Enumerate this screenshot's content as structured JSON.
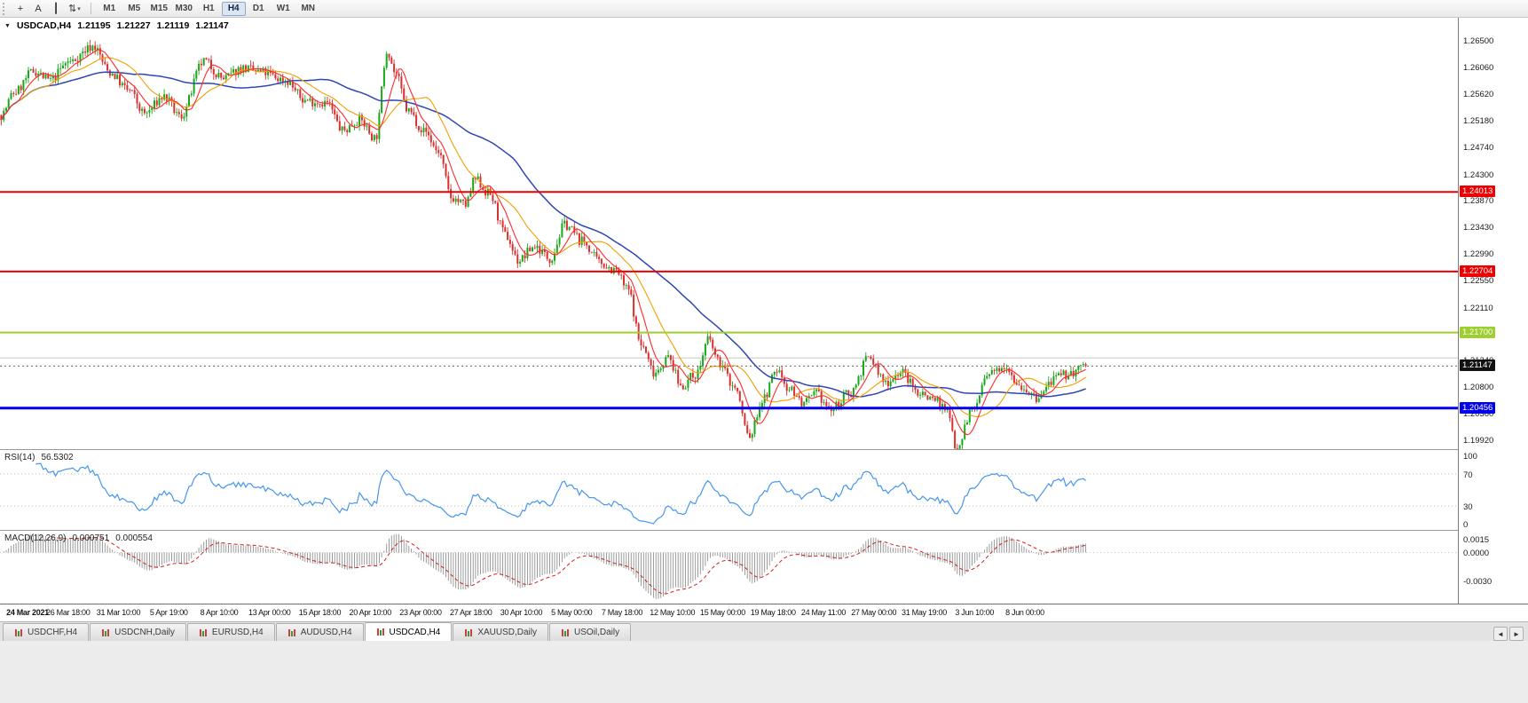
{
  "toolbar": {
    "icons": [
      {
        "name": "crosshair-tool-icon",
        "glyph": "+"
      },
      {
        "name": "text-label-tool-icon",
        "glyph": "A"
      },
      {
        "name": "vertical-line-tool-icon",
        "glyph": "┃"
      },
      {
        "name": "object-list-dropdown-icon",
        "glyph": "⇅",
        "caret": true
      }
    ],
    "timeframes": [
      {
        "label": "M1"
      },
      {
        "label": "M5"
      },
      {
        "label": "M15"
      },
      {
        "label": "M30"
      },
      {
        "label": "H1"
      },
      {
        "label": "H4",
        "active": true
      },
      {
        "label": "D1"
      },
      {
        "label": "W1"
      },
      {
        "label": "MN"
      }
    ]
  },
  "header": {
    "marker": "▼",
    "symbol": "USDCAD,H4",
    "open": "1.21195",
    "high": "1.21227",
    "low": "1.21119",
    "close": "1.21147"
  },
  "price_axis": {
    "labels": [
      "1.26500",
      "1.26060",
      "1.25620",
      "1.25180",
      "1.24740",
      "1.24300",
      "1.23870",
      "1.23430",
      "1.22990",
      "1.22550",
      "1.22110",
      "1.21670",
      "1.21240",
      "1.20800",
      "1.20360",
      "1.19920"
    ]
  },
  "current_price": {
    "value": "1.21147",
    "label_bg": "#111111"
  },
  "rsi": {
    "name": "RSI(14)",
    "value": "56.5302",
    "axis": [
      "100",
      "70",
      "30",
      "0"
    ],
    "levels": [
      70,
      30
    ]
  },
  "macd": {
    "name": "MACD(12,26,9)",
    "value": "0.000751",
    "signal": "0.000554",
    "axis": [
      "0.0015",
      "0.0000",
      "-0.0030"
    ]
  },
  "time_axis": [
    "24 Mar 2021",
    "26 Mar 18:00",
    "31 Mar 10:00",
    "5 Apr 19:00",
    "8 Apr 10:00",
    "13 Apr 00:00",
    "15 Apr 18:00",
    "20 Apr 10:00",
    "23 Apr 00:00",
    "27 Apr 18:00",
    "30 Apr 10:00",
    "5 May 00:00",
    "7 May 18:00",
    "12 May 10:00",
    "15 May 00:00",
    "19 May 18:00",
    "24 May 11:00",
    "27 May 00:00",
    "31 May 19:00",
    "3 Jun 10:00",
    "8 Jun 00:00"
  ],
  "tabs": [
    {
      "label": "USDCHF,H4"
    },
    {
      "label": "USDCNH,Daily"
    },
    {
      "label": "EURUSD,H4"
    },
    {
      "label": "AUDUSD,H4"
    },
    {
      "label": "USDCAD,H4",
      "active": true
    },
    {
      "label": "XAUUSD,Daily"
    },
    {
      "label": "USOil,Daily"
    }
  ],
  "tab_scroll": {
    "left": "◄",
    "right": "►"
  },
  "chart_data": {
    "type": "candlestick",
    "symbol": "USDCAD",
    "period": "H4",
    "price_top": 1.2688,
    "price_bottom": 1.1978,
    "bars": 440,
    "seed": 7,
    "candle_region_w": 1225,
    "last_close": 1.21147,
    "ma_periods": [
      8,
      20,
      55
    ],
    "indicators": {
      "rsi_period": 14,
      "macd": [
        12,
        26,
        9
      ]
    },
    "colors": {
      "up": "#18a818",
      "down": "#d93030",
      "ma_fast": "#ff2a2a",
      "ma_mid": "#f0a000",
      "ma_slow": "#2e46b4",
      "rsi": "#4696ec",
      "macd_hist": "#909090",
      "macd_signal": "#d02020",
      "current_line": "#666666"
    },
    "hlines": [
      {
        "name": "resistance-line-1",
        "price": 1.24013,
        "color": "#ee0000",
        "width": 2,
        "label": "1.24013"
      },
      {
        "name": "resistance-line-2",
        "price": 1.22704,
        "color": "#ee0000",
        "width": 2,
        "label": "1.22704"
      },
      {
        "name": "green-level-line",
        "price": 1.217,
        "color": "#9fce30",
        "width": 2,
        "label": "1.21700"
      },
      {
        "name": "minor-gray-line",
        "price": 1.2128,
        "color": "#c8c8c8",
        "width": 1,
        "under": true
      },
      {
        "name": "support-line-blue",
        "price": 1.20456,
        "color": "#0000ee",
        "width": 3,
        "label": "1.20456"
      }
    ],
    "anchors": [
      [
        0.0,
        1.2528
      ],
      [
        0.012,
        1.2565
      ],
      [
        0.03,
        1.26
      ],
      [
        0.045,
        1.2585
      ],
      [
        0.062,
        1.2615
      ],
      [
        0.085,
        1.2641
      ],
      [
        0.1,
        1.2598
      ],
      [
        0.118,
        1.2568
      ],
      [
        0.132,
        1.253
      ],
      [
        0.15,
        1.2558
      ],
      [
        0.165,
        1.2525
      ],
      [
        0.187,
        1.2616
      ],
      [
        0.205,
        1.2588
      ],
      [
        0.222,
        1.2605
      ],
      [
        0.24,
        1.2598
      ],
      [
        0.262,
        1.2585
      ],
      [
        0.28,
        1.2552
      ],
      [
        0.3,
        1.2548
      ],
      [
        0.315,
        1.2502
      ],
      [
        0.33,
        1.252
      ],
      [
        0.345,
        1.249
      ],
      [
        0.356,
        1.2636
      ],
      [
        0.363,
        1.2598
      ],
      [
        0.375,
        1.2535
      ],
      [
        0.39,
        1.2502
      ],
      [
        0.403,
        1.2468
      ],
      [
        0.415,
        1.2392
      ],
      [
        0.428,
        1.238
      ],
      [
        0.437,
        1.2422
      ],
      [
        0.45,
        1.2398
      ],
      [
        0.465,
        1.233
      ],
      [
        0.477,
        1.2288
      ],
      [
        0.492,
        1.2312
      ],
      [
        0.506,
        1.2292
      ],
      [
        0.52,
        1.2348
      ],
      [
        0.536,
        1.232
      ],
      [
        0.552,
        1.2285
      ],
      [
        0.566,
        1.2272
      ],
      [
        0.578,
        1.224
      ],
      [
        0.59,
        1.215
      ],
      [
        0.602,
        1.2105
      ],
      [
        0.615,
        1.2128
      ],
      [
        0.627,
        1.2082
      ],
      [
        0.641,
        1.2102
      ],
      [
        0.652,
        1.2158
      ],
      [
        0.662,
        1.212
      ],
      [
        0.676,
        1.208
      ],
      [
        0.69,
        1.1998
      ],
      [
        0.702,
        1.2058
      ],
      [
        0.715,
        1.2108
      ],
      [
        0.727,
        1.2078
      ],
      [
        0.74,
        1.2052
      ],
      [
        0.752,
        1.2068
      ],
      [
        0.765,
        1.2042
      ],
      [
        0.782,
        1.207
      ],
      [
        0.8,
        1.2128
      ],
      [
        0.815,
        1.2088
      ],
      [
        0.83,
        1.2105
      ],
      [
        0.845,
        1.2072
      ],
      [
        0.86,
        1.2062
      ],
      [
        0.872,
        1.204
      ],
      [
        0.881,
        1.1982
      ],
      [
        0.895,
        1.2042
      ],
      [
        0.91,
        1.2098
      ],
      [
        0.925,
        1.2118
      ],
      [
        0.94,
        1.2082
      ],
      [
        0.955,
        1.206
      ],
      [
        0.97,
        1.2092
      ],
      [
        0.985,
        1.2102
      ],
      [
        1.0,
        1.21147
      ]
    ]
  }
}
